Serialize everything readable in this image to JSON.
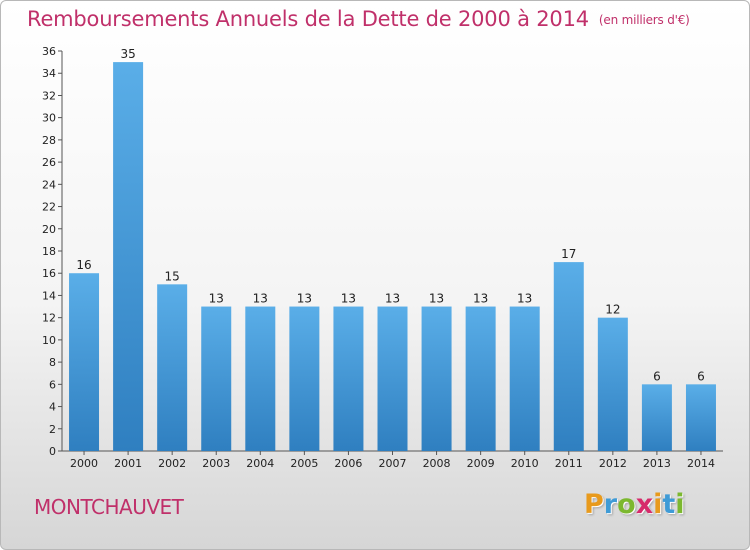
{
  "chart_data": {
    "type": "bar",
    "title": "Remboursements Annuels de la Dette de 2000 à 2014",
    "subtitle": "(en milliers d'€)",
    "categories": [
      "2000",
      "2001",
      "2002",
      "2003",
      "2004",
      "2005",
      "2006",
      "2007",
      "2008",
      "2009",
      "2010",
      "2011",
      "2012",
      "2013",
      "2014"
    ],
    "values": [
      16,
      35,
      15,
      13,
      13,
      13,
      13,
      13,
      13,
      13,
      13,
      17,
      12,
      6,
      6
    ],
    "ylim": [
      0,
      36
    ],
    "yticks": [
      0,
      2,
      4,
      6,
      8,
      10,
      12,
      14,
      16,
      18,
      20,
      22,
      24,
      26,
      28,
      30,
      32,
      34,
      36
    ],
    "grid": false,
    "bar_color": "#4a9fdf"
  },
  "footer": {
    "commune": "MONTCHAUVET",
    "logo": {
      "letters": [
        "P",
        "r",
        "o",
        "x",
        "i",
        "t",
        "i"
      ],
      "colors": [
        "#e89a1c",
        "#3f9bd6",
        "#7cb82f",
        "#d62b6b",
        "#e89a1c",
        "#3f9bd6",
        "#7cb82f"
      ]
    }
  }
}
